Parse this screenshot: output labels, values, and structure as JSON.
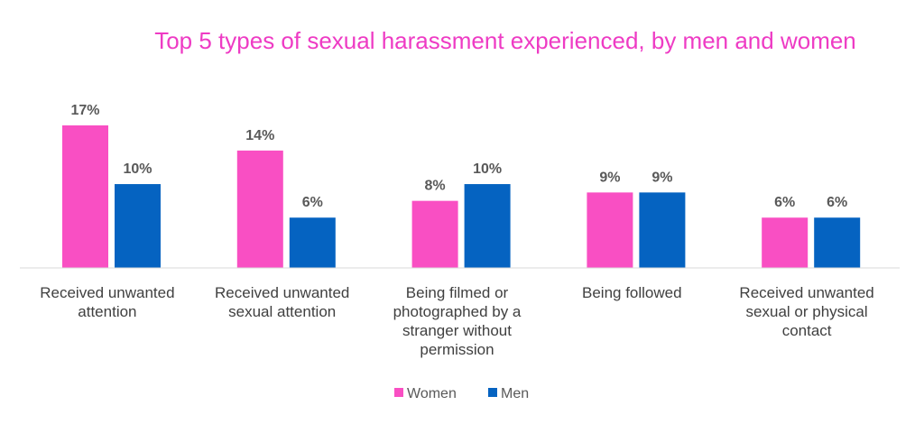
{
  "chart_data": {
    "type": "bar",
    "title": "Top 5 types of sexual harassment experienced, by men and women",
    "categories": [
      "Received unwanted attention",
      "Received unwanted sexual attention",
      "Being filmed or photographed by a stranger without permission",
      "Being followed",
      "Received unwanted sexual or physical contact"
    ],
    "series": [
      {
        "name": "Women",
        "values": [
          17,
          14,
          8,
          9,
          6
        ],
        "labels": [
          "17%",
          "14%",
          "8%",
          "9%",
          "6%"
        ],
        "color": "#f94fc3"
      },
      {
        "name": "Men",
        "values": [
          10,
          6,
          10,
          9,
          6
        ],
        "labels": [
          "10%",
          "6%",
          "10%",
          "9%",
          "6%"
        ],
        "color": "#0563c1"
      }
    ],
    "ylim": [
      0,
      17
    ],
    "grid": false,
    "legend": "bottom"
  }
}
